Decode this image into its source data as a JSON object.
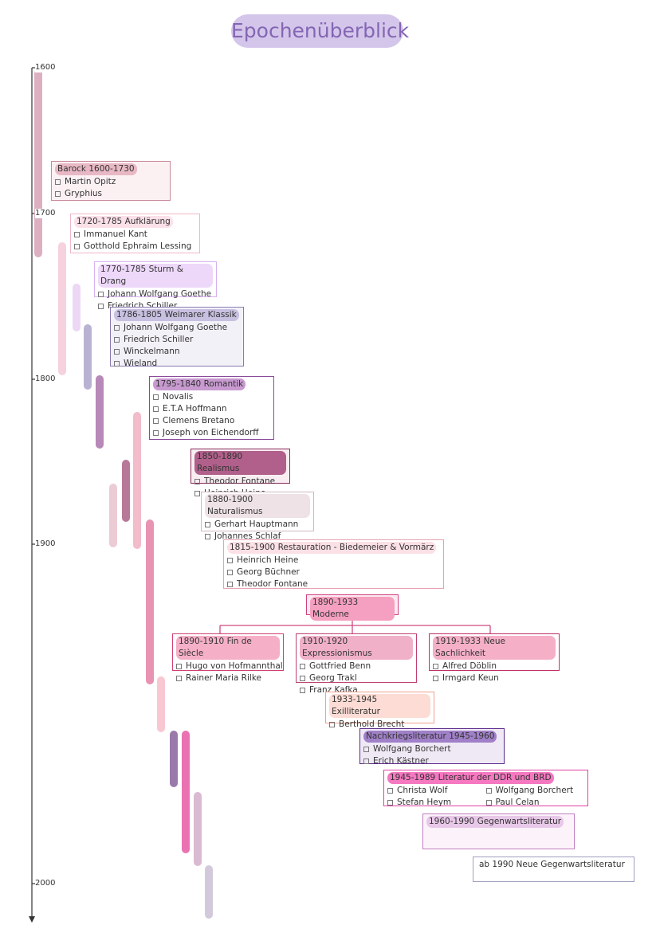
{
  "title": "Epochenüberblick",
  "axis_labels": [
    "1600",
    "1700",
    "1800",
    "1900",
    "2000"
  ],
  "epochs": [
    {
      "title": "Barock 1600-1730",
      "authors": [
        "Martin Opitz",
        "Gryphius"
      ]
    },
    {
      "title": "1720-1785 Aufklärung",
      "authors": [
        "Immanuel Kant",
        "Gotthold Ephraim Lessing"
      ]
    },
    {
      "title": "1770-1785 Sturm & Drang",
      "authors": [
        "Johann Wolfgang Goethe",
        "Friedrich Schiller"
      ]
    },
    {
      "title": "1786-1805 Weimarer Klassik",
      "authors": [
        "Johann Wolfgang Goethe",
        "Friedrich Schiller",
        "Winckelmann",
        "Wieland"
      ]
    },
    {
      "title": "1795-1840 Romantik",
      "authors": [
        "Novalis",
        "E.T.A Hoffmann",
        "Clemens Bretano",
        "Joseph von Eichendorff"
      ]
    },
    {
      "title": "1850-1890 Realismus",
      "authors": [
        "Theodor Fontane",
        "Heinrich Heine"
      ]
    },
    {
      "title": "1880-1900 Naturalismus",
      "authors": [
        "Gerhart Hauptmann",
        "Johannes Schlaf"
      ]
    },
    {
      "title": "1815-1900 Restauration - Biedemeier & Vormärz",
      "authors": [
        "Heinrich Heine",
        "Georg Büchner",
        "Theodor Fontane"
      ]
    },
    {
      "title": "1890-1933 Moderne",
      "authors": []
    },
    {
      "title": "1890-1910 Fin de Siècle",
      "authors": [
        "Hugo von Hofmannthal",
        "Rainer Maria Rilke"
      ]
    },
    {
      "title": "1910-1920 Expressionismus",
      "authors": [
        "Gottfried Benn",
        "Georg Trakl",
        "Franz Kafka"
      ]
    },
    {
      "title": "1919-1933 Neue Sachlichkeit",
      "authors": [
        "Alfred Döblin",
        "Irmgard Keun"
      ]
    },
    {
      "title": "1933-1945 Exilliteratur",
      "authors": [
        "Berthold Brecht"
      ]
    },
    {
      "title": "Nachkriegsliteratur 1945-1960",
      "authors": [
        "Wolfgang Borchert",
        "Erich Kästner"
      ]
    },
    {
      "title": "1945-1989 Literatur der DDR und BRD",
      "authors": [
        "Christa Wolf",
        "Wolfgang Borchert",
        "Stefan Heym",
        "Paul Celan"
      ]
    },
    {
      "title": "1960-1990 Gegenwartsliteratur",
      "authors": []
    },
    {
      "title": "ab 1990 Neue Gegenwartsliteratur",
      "authors": []
    }
  ]
}
